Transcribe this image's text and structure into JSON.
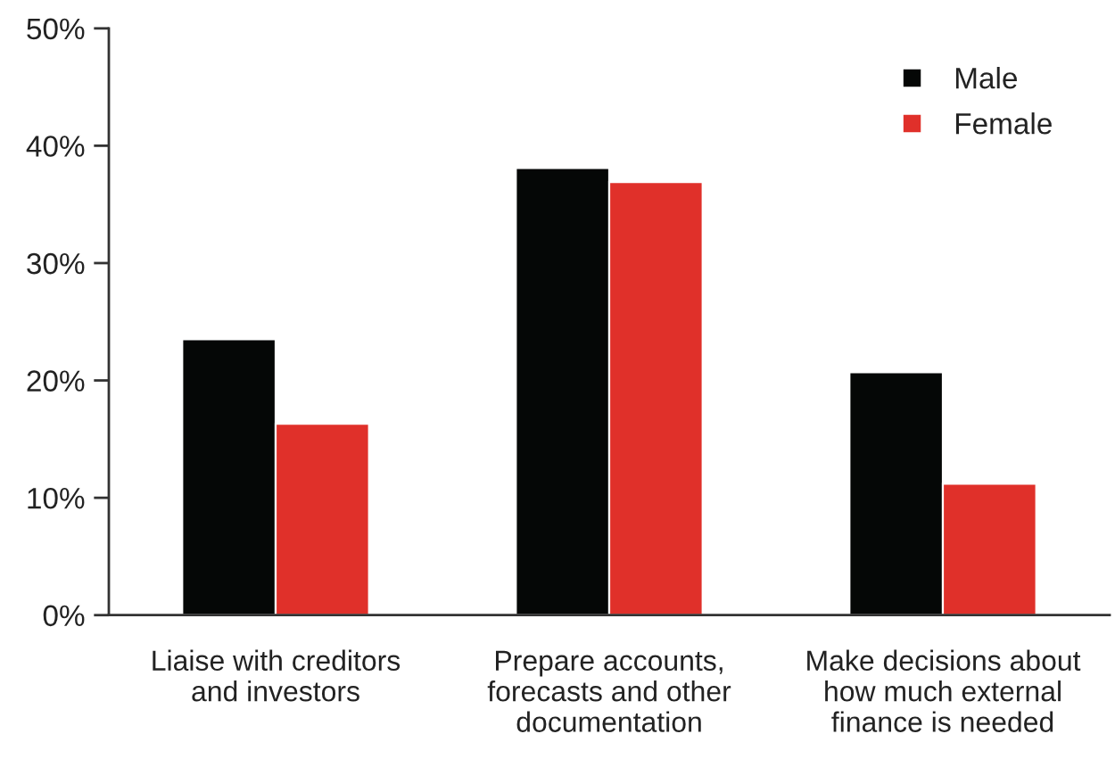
{
  "chart_data": {
    "type": "bar",
    "categories": [
      "Liaise with creditors\nand investors",
      "Prepare accounts,\nforecasts and other\ndocumentation",
      "Make decisions about\nhow much external\nfinance is needed"
    ],
    "series": [
      {
        "name": "Male",
        "color": "#050706",
        "values": [
          23.5,
          38.1,
          20.7
        ]
      },
      {
        "name": "Female",
        "color": "#e0302a",
        "values": [
          16.3,
          36.9,
          11.2
        ]
      }
    ],
    "ylim": [
      0,
      50
    ],
    "yticks": [
      {
        "value": 0,
        "label": "0%"
      },
      {
        "value": 10,
        "label": "10%"
      },
      {
        "value": 20,
        "label": "20%"
      },
      {
        "value": 30,
        "label": "30%"
      },
      {
        "value": 40,
        "label": "40%"
      },
      {
        "value": 50,
        "label": "50%"
      }
    ],
    "grid": false,
    "legend": "top right"
  }
}
